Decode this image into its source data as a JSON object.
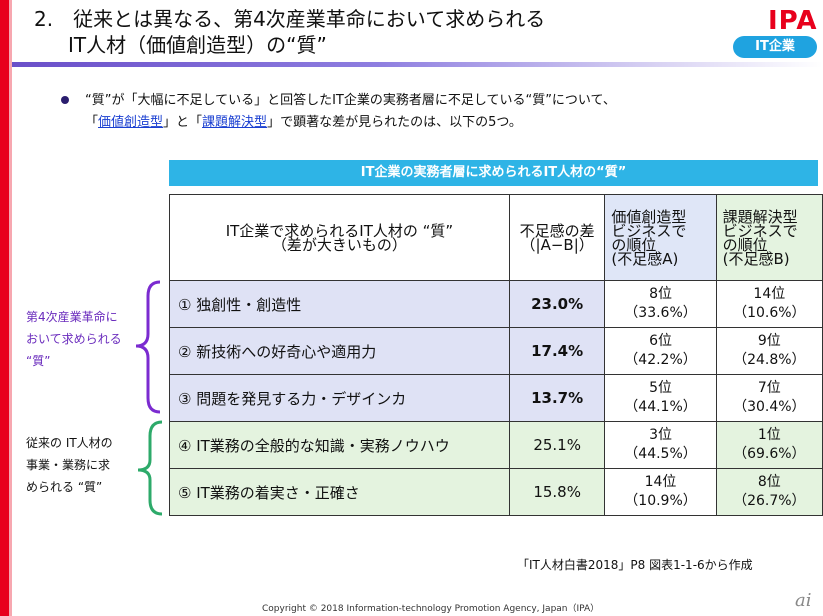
{
  "header": {
    "title_line1": "2.　従来とは異なる、第4次産業革命において求められる",
    "title_line2": "IT人材（価値創造型）の“質”",
    "logo": "IPA",
    "badge": "IT企業"
  },
  "intro": {
    "line1": "“質”が「大幅に不足している」と回答したIT企業の実務者層に不足している“質”について、",
    "line2_open": "「",
    "link1": "価値創造型",
    "line2_mid": "」と「",
    "link2": "課題解決型",
    "line2_close": "」で顕著な差が見られたのは、以下の5つ。"
  },
  "table": {
    "caption": "IT企業の実務者層に求められるIT人材の“質”",
    "headers": {
      "col1_line1": "IT企業で求められるIT人材の “質”",
      "col1_line2": "（差が大きいもの）",
      "col2_line1": "不足感の差",
      "col2_line2": "（|A−B|）",
      "col3": [
        "価値創造型",
        "ビジネスで",
        "の順位",
        "(不足感A)"
      ],
      "col4": [
        "課題解決型",
        "ビジネスで",
        "の順位",
        "(不足感B)"
      ]
    },
    "rows": [
      {
        "name": "① 独創性・創造性",
        "diff": "23.0%",
        "a_rank": "8位",
        "a_pct": "（33.6%）",
        "b_rank": "14位",
        "b_pct": "（10.6%）"
      },
      {
        "name": "② 新技術への好奇心や適用力",
        "diff": "17.4%",
        "a_rank": "6位",
        "a_pct": "（42.2%）",
        "b_rank": "9位",
        "b_pct": "（24.8%）"
      },
      {
        "name": "③ 問題を発見する力・デザインカ",
        "diff": "13.7%",
        "a_rank": "5位",
        "a_pct": "（44.1%）",
        "b_rank": "7位",
        "b_pct": "（30.4%）"
      },
      {
        "name": "④ IT業務の全般的な知識・実務ノウハウ",
        "diff": "25.1%",
        "a_rank": "3位",
        "a_pct": "（44.5%）",
        "b_rank": "1位",
        "b_pct": "（69.6%）"
      },
      {
        "name": "⑤ IT業務の着実さ・正確さ",
        "diff": "15.8%",
        "a_rank": "14位",
        "a_pct": "（10.9%）",
        "b_rank": "8位",
        "b_pct": "（26.7%）"
      }
    ]
  },
  "side_labels": {
    "purple": [
      "第4次産業革命に",
      "おいて求められる",
      "“質”"
    ],
    "green": [
      "従来の IT人材の",
      "事業・業務に求",
      "められる “質”"
    ]
  },
  "colors": {
    "accent_red": "#e8001c",
    "caption_blue": "#2eb4e6",
    "brace_purple": "#7b2bd0",
    "brace_green": "#2daa6a"
  },
  "footer": {
    "source": "「IT人材白書2018」P8 図表1-1-6から作成",
    "copyright": "Copyright © 2018 Information-technology Promotion Agency, Japan（IPA）",
    "corner_logo": "ai"
  }
}
